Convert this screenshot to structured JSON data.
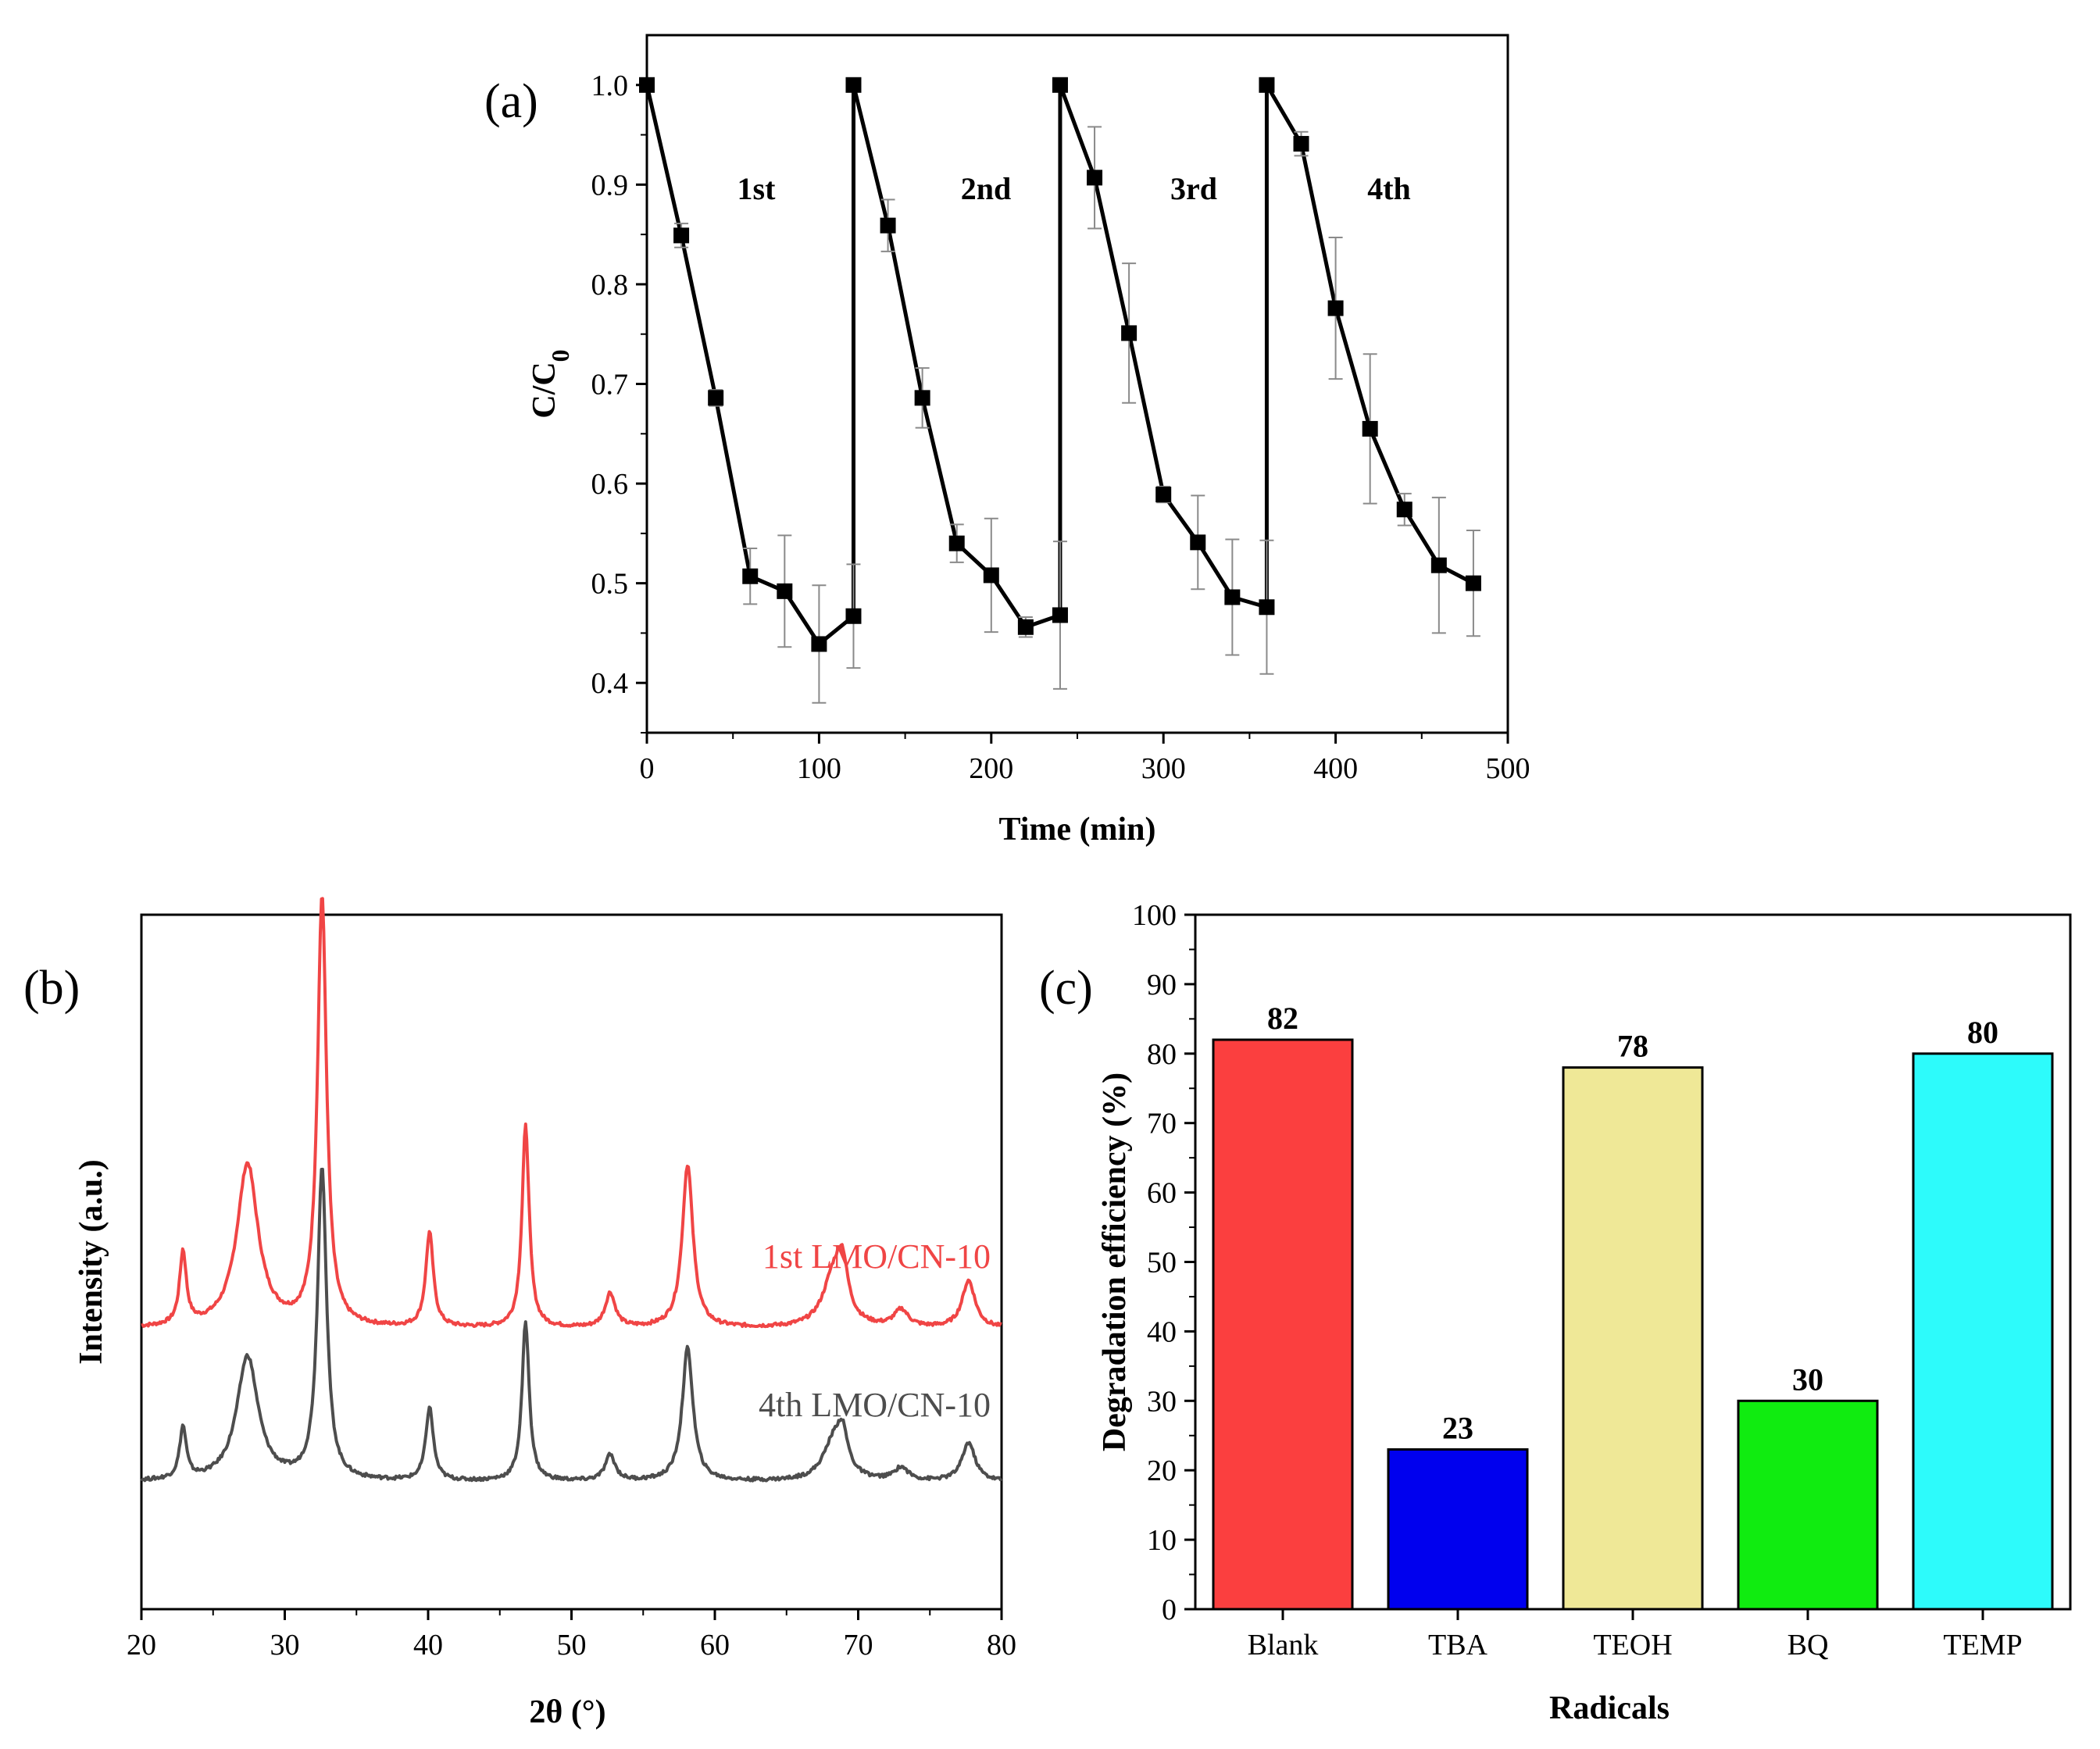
{
  "chart_data": [
    {
      "panel": "(a)",
      "type": "line",
      "xlabel": "Time (min)",
      "ylabel": "C/C0",
      "xlim": [
        0,
        500
      ],
      "ylim": [
        0.35,
        1.05
      ],
      "xticks": [
        0,
        100,
        200,
        300,
        400,
        500
      ],
      "yticks": [
        0.4,
        0.5,
        0.6,
        0.7,
        0.8,
        0.9,
        1.0
      ],
      "ytick_labels": [
        "0.4",
        "0.5",
        "0.6",
        "0.7",
        "0.8",
        "0.9",
        "1.0"
      ],
      "series": [
        {
          "x": [
            0,
            20,
            40,
            60,
            80,
            100,
            120,
            120,
            140,
            160,
            180,
            200,
            220,
            240,
            240,
            260,
            280,
            300,
            320,
            340,
            360,
            360,
            380,
            400,
            420,
            440,
            460,
            480
          ],
          "y": [
            1.0,
            0.849,
            0.686,
            0.507,
            0.492,
            0.439,
            0.467,
            1.0,
            0.859,
            0.686,
            0.54,
            0.508,
            0.456,
            0.468,
            1.0,
            0.907,
            0.751,
            0.589,
            0.541,
            0.486,
            0.476,
            1.0,
            0.941,
            0.776,
            0.655,
            0.574,
            0.518,
            0.5
          ],
          "yerr": [
            0,
            0.012,
            0.008,
            0.028,
            0.056,
            0.059,
            0.052,
            0,
            0.026,
            0.03,
            0.019,
            0.057,
            0.01,
            0.074,
            0,
            0.051,
            0.07,
            0.008,
            0.047,
            0.058,
            0.067,
            0,
            0.012,
            0.071,
            0.075,
            0.016,
            0.068,
            0.053
          ]
        }
      ],
      "annotations": [
        "1st",
        "2nd",
        "3rd",
        "4th"
      ]
    },
    {
      "panel": "(b)",
      "type": "line",
      "xlabel": "2θ (°)",
      "ylabel": "Intensity (a.u.)",
      "xlim": [
        20,
        80
      ],
      "xticks": [
        20,
        30,
        40,
        50,
        60,
        70,
        80
      ],
      "series": [
        {
          "name": "1st  LMO/CN-10",
          "color": "#f04545",
          "peaks_2theta": [
            22.9,
            27.4,
            32.6,
            40.1,
            46.8,
            52.7,
            58.1,
            68.3,
            73.0,
            77.7
          ],
          "relative_height": [
            0.17,
            0.38,
            1.0,
            0.22,
            0.47,
            0.08,
            0.38,
            0.12,
            0.04,
            0.11
          ]
        },
        {
          "name": "4th  LMO/CN-10",
          "color": "#4d4d4d",
          "peaks_2theta": [
            22.9,
            27.4,
            32.6,
            40.1,
            46.8,
            52.7,
            58.1,
            68.3,
            73.0,
            77.7
          ],
          "relative_height": [
            0.12,
            0.29,
            0.73,
            0.17,
            0.37,
            0.06,
            0.31,
            0.09,
            0.03,
            0.09
          ]
        }
      ]
    },
    {
      "panel": "(c)",
      "type": "bar",
      "xlabel": "Radicals",
      "ylabel": "Degradation efficiency (%)",
      "ylim": [
        0,
        100
      ],
      "yticks": [
        0,
        10,
        20,
        30,
        40,
        50,
        60,
        70,
        80,
        90,
        100
      ],
      "categories": [
        "Blank",
        "TBA",
        "TEOH",
        "BQ",
        "TEMP"
      ],
      "values": [
        82,
        23,
        78,
        30,
        80
      ],
      "colors": [
        "#fb3f3f",
        "#0000ee",
        "#efe897",
        "#10ec10",
        "#2dfbfb"
      ]
    }
  ]
}
